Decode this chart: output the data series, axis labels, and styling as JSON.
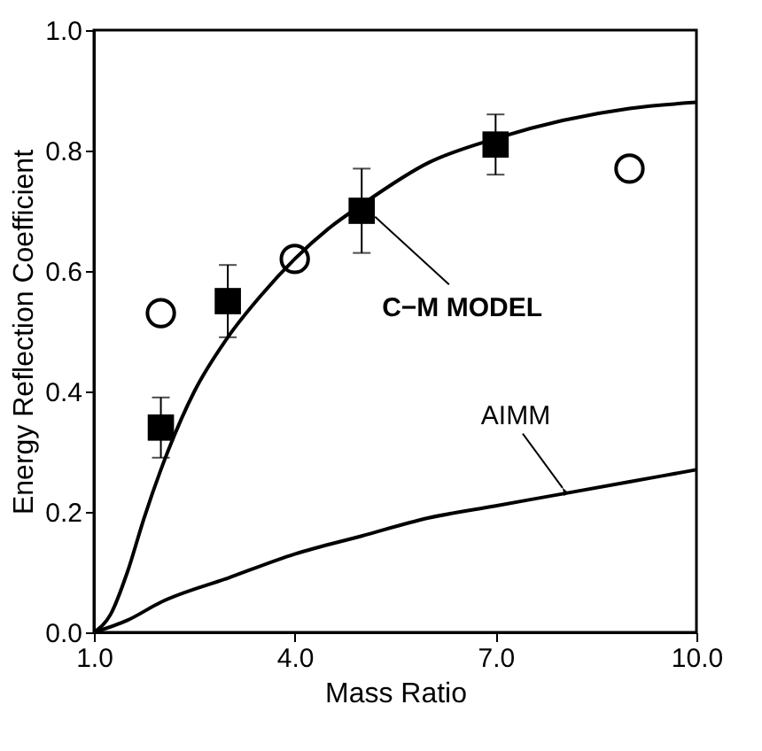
{
  "chart_data": {
    "type": "line",
    "xlabel": "Mass  Ratio",
    "ylabel": "Energy Reflection Coefficient",
    "xlim": [
      1,
      10
    ],
    "ylim": [
      0,
      1
    ],
    "xticks": [
      {
        "value": 1,
        "label": "1.0"
      },
      {
        "value": 4,
        "label": "4.0"
      },
      {
        "value": 7,
        "label": "7.0"
      },
      {
        "value": 10,
        "label": "10.0"
      }
    ],
    "yticks": [
      {
        "value": 0,
        "label": "0.0"
      },
      {
        "value": 0.2,
        "label": "0.2"
      },
      {
        "value": 0.4,
        "label": "0.4"
      },
      {
        "value": 0.6,
        "label": "0.6"
      },
      {
        "value": 0.8,
        "label": "0.8"
      },
      {
        "value": 1,
        "label": "1.0"
      }
    ],
    "grid": false,
    "series": [
      {
        "color": "#000000",
        "x": [
          1,
          1.25,
          1.5,
          1.75,
          2,
          2.5,
          3,
          3.5,
          4,
          4.5,
          5,
          6,
          7,
          8,
          9,
          10
        ],
        "values": [
          0,
          0.03,
          0.1,
          0.19,
          0.27,
          0.4,
          0.49,
          0.56,
          0.62,
          0.67,
          0.71,
          0.78,
          0.82,
          0.85,
          0.87,
          0.88
        ]
      },
      {
        "color": "#000000",
        "x": [
          1,
          1.5,
          2,
          3,
          4,
          5,
          6,
          7,
          8,
          9,
          10
        ],
        "values": [
          0,
          0.02,
          0.05,
          0.09,
          0.13,
          0.16,
          0.19,
          0.21,
          0.23,
          0.25,
          0.27
        ]
      },
      {
        "type": "scatter",
        "marker": "square",
        "color": "#000000",
        "x": [
          2,
          3,
          5,
          7
        ],
        "values": [
          0.34,
          0.55,
          0.7,
          0.81
        ],
        "errors": [
          [
            0.29,
            0.39
          ],
          [
            0.49,
            0.61
          ],
          [
            0.63,
            0.77
          ],
          [
            0.76,
            0.86
          ]
        ]
      },
      {
        "type": "scatter",
        "marker": "circle",
        "color": "#000000",
        "x": [
          2,
          4,
          9
        ],
        "values": [
          0.53,
          0.62,
          0.77
        ]
      }
    ],
    "annotations": [
      {
        "text": "C−M MODEL",
        "x": 5.2,
        "y": 0.69
      },
      {
        "text": "AIMM",
        "x": 8,
        "y": 0.24
      }
    ]
  }
}
